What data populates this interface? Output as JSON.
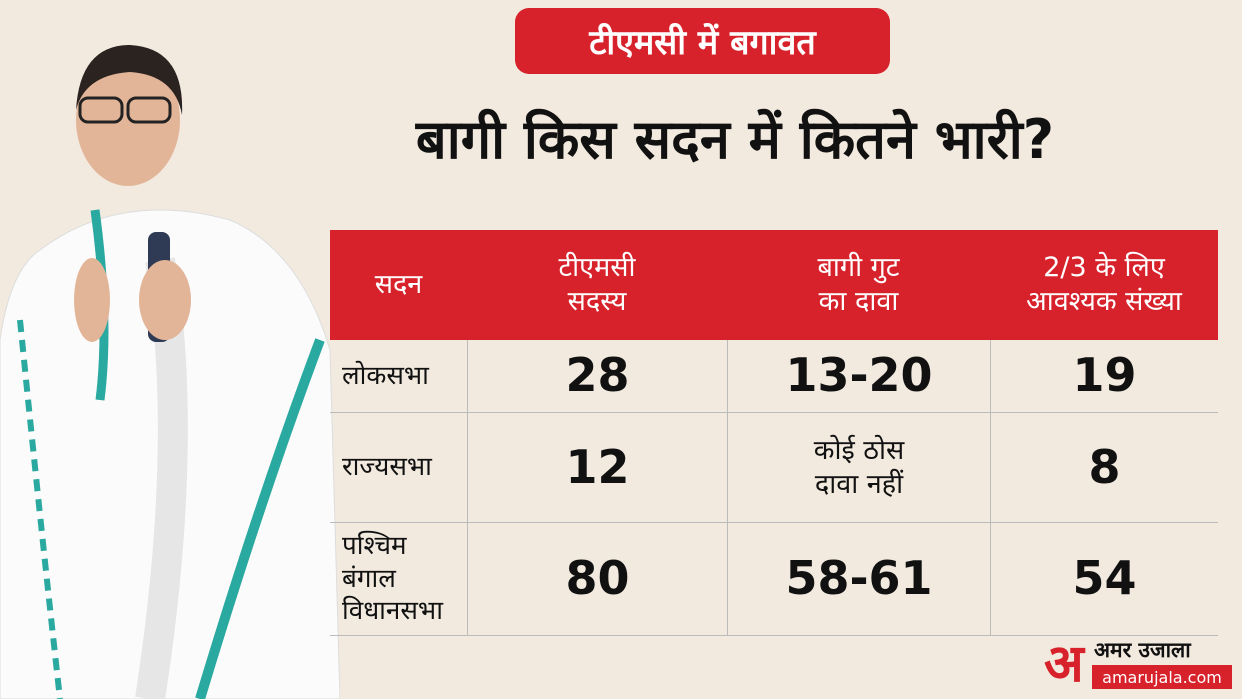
{
  "badge": "टीएमसी में बगावत",
  "title": "बागी किस सदन में कितने भारी?",
  "table": {
    "header": [
      [
        "सदन"
      ],
      [
        "टीएमसी",
        "सदस्य"
      ],
      [
        "बागी गुट",
        "का दावा"
      ],
      [
        "2/3 के लिए",
        "आवश्यक संख्या"
      ]
    ],
    "rows": [
      [
        [
          "लोकसभा"
        ],
        [
          "28"
        ],
        [
          "13-20"
        ],
        [
          "19"
        ]
      ],
      [
        [
          "राज्यसभा"
        ],
        [
          "12"
        ],
        [
          "कोई ठोस",
          "दावा नहीं"
        ],
        [
          "8"
        ]
      ],
      [
        [
          "पश्चिम बंगाल",
          "विधानसभा"
        ],
        [
          "80"
        ],
        [
          "58-61"
        ],
        [
          "54"
        ]
      ]
    ]
  },
  "logo": {
    "mark": "अ",
    "name": "अमर उजाला",
    "url": "amarujala.com"
  }
}
